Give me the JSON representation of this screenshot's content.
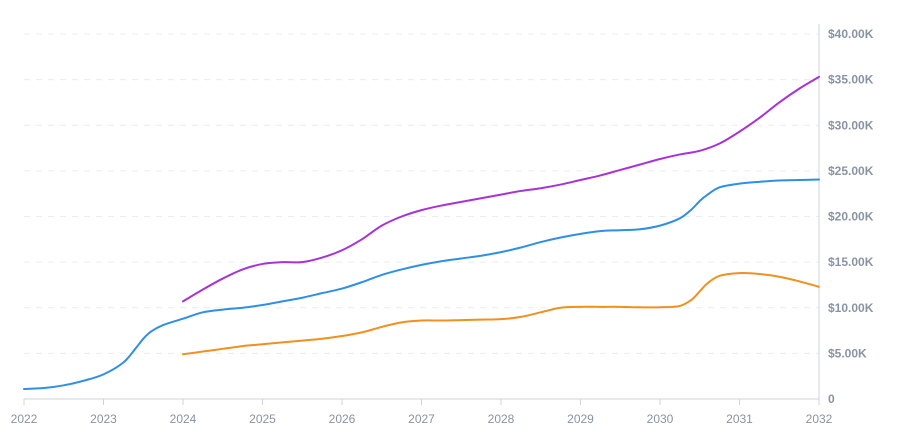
{
  "chart_data": {
    "type": "line",
    "title": "",
    "xlabel": "",
    "ylabel": "",
    "x_ticks": [
      "2022",
      "2023",
      "2024",
      "2025",
      "2026",
      "2027",
      "2028",
      "2029",
      "2030",
      "2031",
      "2032"
    ],
    "y_ticks": [
      "0",
      "$5.00K",
      "$10.00K",
      "$15.00K",
      "$20.00K",
      "$25.00K",
      "$30.00K",
      "$35.00K",
      "$40.00K"
    ],
    "xlim": [
      2022,
      2032
    ],
    "ylim": [
      0,
      40000
    ],
    "grid": true,
    "y_axis_side": "right",
    "series": [
      {
        "color": "#a832d6",
        "x": [
          2024.0,
          2024.25,
          2024.5,
          2024.75,
          2025.0,
          2025.25,
          2025.5,
          2025.75,
          2026.0,
          2026.25,
          2026.5,
          2026.75,
          2027.0,
          2027.25,
          2027.5,
          2027.75,
          2028.0,
          2028.25,
          2028.5,
          2028.75,
          2029.0,
          2029.25,
          2029.5,
          2029.75,
          2030.0,
          2030.25,
          2030.5,
          2030.75,
          2031.0,
          2031.25,
          2031.5,
          2031.75,
          2032.0
        ],
        "values": [
          10700,
          12000,
          13200,
          14200,
          14800,
          15000,
          15000,
          15500,
          16300,
          17500,
          19000,
          20000,
          20700,
          21200,
          21600,
          22000,
          22400,
          22800,
          23100,
          23500,
          24000,
          24500,
          25100,
          25700,
          26300,
          26800,
          27200,
          28000,
          29300,
          30800,
          32500,
          34000,
          35300
        ]
      },
      {
        "color": "#2f8fe6",
        "x": [
          2022.0,
          2022.25,
          2022.5,
          2022.75,
          2023.0,
          2023.25,
          2023.4,
          2023.5,
          2023.6,
          2023.75,
          2024.0,
          2024.25,
          2024.5,
          2024.75,
          2025.0,
          2025.25,
          2025.5,
          2025.75,
          2026.0,
          2026.25,
          2026.5,
          2026.75,
          2027.0,
          2027.25,
          2027.5,
          2027.75,
          2028.0,
          2028.25,
          2028.5,
          2028.75,
          2029.0,
          2029.25,
          2029.5,
          2029.75,
          2030.0,
          2030.25,
          2030.4,
          2030.5,
          2030.6,
          2030.75,
          2031.0,
          2031.25,
          2031.5,
          2031.75,
          2032.0
        ],
        "values": [
          1100,
          1200,
          1500,
          2000,
          2700,
          4000,
          5500,
          6600,
          7400,
          8100,
          8800,
          9500,
          9800,
          10000,
          10300,
          10700,
          11100,
          11600,
          12100,
          12800,
          13600,
          14200,
          14700,
          15100,
          15400,
          15700,
          16100,
          16600,
          17200,
          17700,
          18100,
          18400,
          18500,
          18600,
          19000,
          19800,
          20800,
          21700,
          22400,
          23200,
          23600,
          23800,
          23950,
          24000,
          24050
        ]
      },
      {
        "color": "#f0901e",
        "x": [
          2024.0,
          2024.25,
          2024.5,
          2024.75,
          2025.0,
          2025.25,
          2025.5,
          2025.75,
          2026.0,
          2026.25,
          2026.5,
          2026.75,
          2027.0,
          2027.25,
          2027.5,
          2027.75,
          2028.0,
          2028.25,
          2028.5,
          2028.75,
          2029.0,
          2029.25,
          2029.5,
          2029.75,
          2030.0,
          2030.25,
          2030.4,
          2030.5,
          2030.6,
          2030.75,
          2031.0,
          2031.25,
          2031.5,
          2031.75,
          2032.0
        ],
        "values": [
          4900,
          5200,
          5500,
          5800,
          6000,
          6200,
          6400,
          6600,
          6900,
          7300,
          7900,
          8400,
          8600,
          8600,
          8650,
          8700,
          8750,
          9000,
          9500,
          10000,
          10100,
          10100,
          10100,
          10050,
          10050,
          10200,
          10900,
          11800,
          12700,
          13500,
          13800,
          13700,
          13400,
          12900,
          12300
        ]
      }
    ]
  }
}
